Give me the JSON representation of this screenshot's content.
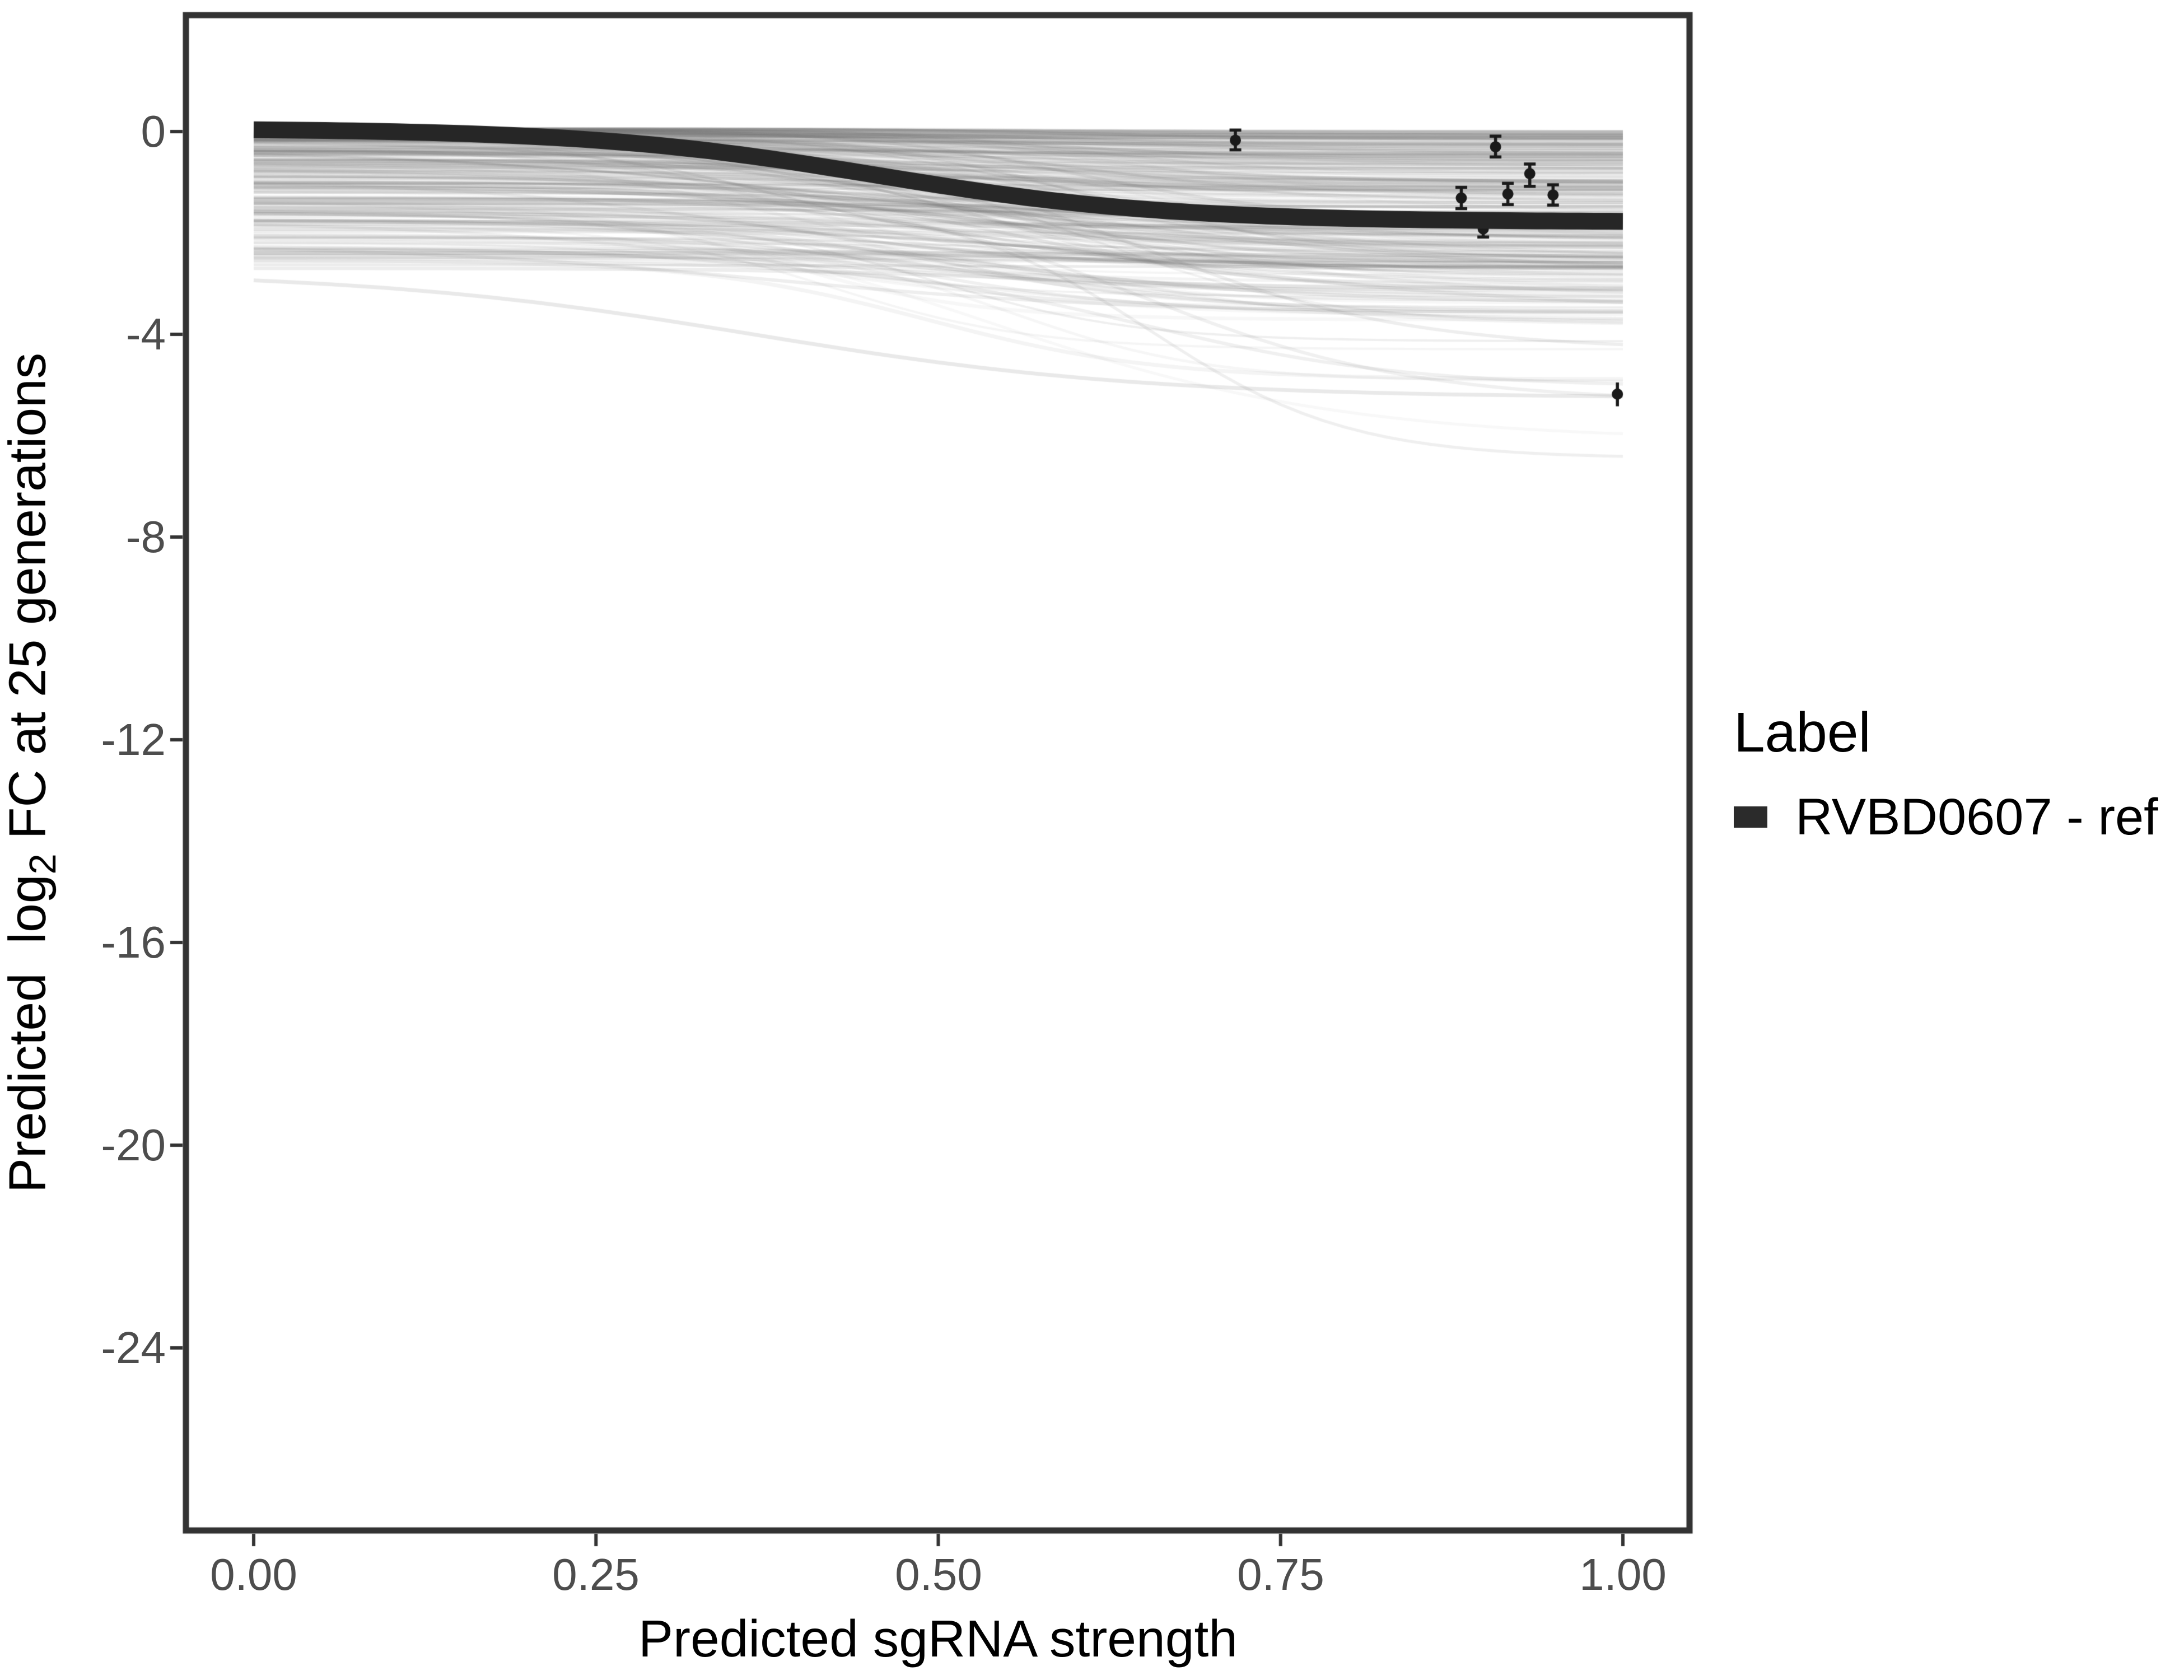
{
  "chart_data": {
    "type": "line",
    "title": "",
    "xlabel": "Predicted sgRNA strength",
    "ylabel": {
      "pre": "Predicted  log",
      "sub": "2",
      "post": " FC at 25 generations"
    },
    "x_ticks": [
      "0.00",
      "0.25",
      "0.50",
      "0.75",
      "1.00"
    ],
    "x_tick_values": [
      0,
      0.25,
      0.5,
      0.75,
      1.0
    ],
    "y_ticks": [
      "0",
      "-4",
      "-8",
      "-12",
      "-16",
      "-20",
      "-24"
    ],
    "y_tick_values": [
      0,
      -4,
      -8,
      -12,
      -16,
      -20,
      -24
    ],
    "xlim": [
      -0.049,
      1.049
    ],
    "ylim": [
      -27.6,
      2.3
    ],
    "grid": "off",
    "legend": {
      "title": "Label",
      "position": "right",
      "entries": [
        {
          "label": "RVBD0607 - ref",
          "color": "#2b2b2b"
        }
      ]
    },
    "ref_curve": {
      "label": "RVBD0607 - ref",
      "color": "#262626",
      "sigmoid": {
        "start": 0.06,
        "end": -1.78,
        "midpoint": 0.455,
        "steepness": 9.5
      },
      "samples": {
        "x": [
          0,
          0.1,
          0.2,
          0.3,
          0.4,
          0.5,
          0.6,
          0.7,
          0.8,
          0.9,
          1.0
        ],
        "y": [
          0.04,
          -0.04,
          -0.13,
          -0.32,
          -0.65,
          -1.07,
          -1.42,
          -1.62,
          -1.71,
          -1.75,
          -1.77
        ]
      }
    },
    "points": [
      {
        "x": 0.717,
        "y": -0.17,
        "ymin": -0.36,
        "ymax": 0.03,
        "caps": true
      },
      {
        "x": 0.882,
        "y": -1.31,
        "ymin": -1.52,
        "ymax": -1.1,
        "caps": true
      },
      {
        "x": 0.898,
        "y": -1.92,
        "ymin": -2.08,
        "ymax": -1.76,
        "caps": true
      },
      {
        "x": 0.907,
        "y": -0.3,
        "ymin": -0.5,
        "ymax": -0.09,
        "caps": true
      },
      {
        "x": 0.916,
        "y": -1.23,
        "ymin": -1.44,
        "ymax": -1.02,
        "caps": true
      },
      {
        "x": 0.932,
        "y": -0.83,
        "ymin": -1.08,
        "ymax": -0.64,
        "caps": true
      },
      {
        "x": 0.949,
        "y": -1.25,
        "ymin": -1.45,
        "ymax": -1.05,
        "caps": true
      },
      {
        "x": 0.996,
        "y": -5.18,
        "ymin": -5.42,
        "ymax": -4.95,
        "caps": false
      }
    ],
    "ensemble": {
      "count": 270,
      "seed": 20,
      "color_rgb": [
        110,
        110,
        110
      ],
      "alpha_range": [
        0.045,
        0.155
      ],
      "start_range": [
        0.06,
        -2.85
      ],
      "end_min": -6.45,
      "midpoint_range": [
        0.36,
        0.66
      ],
      "steepness_range": [
        6.5,
        14
      ],
      "x_span": [
        0,
        1
      ]
    }
  },
  "colors": {
    "background": "#ffffff",
    "panel_border": "#333333",
    "axis_tick": "#333333",
    "axis_text": "#4d4d4d",
    "axis_title": "#000000",
    "ref_curve": "#262626",
    "point": "#1a1a1a",
    "legend_key": "#2b2b2b"
  }
}
